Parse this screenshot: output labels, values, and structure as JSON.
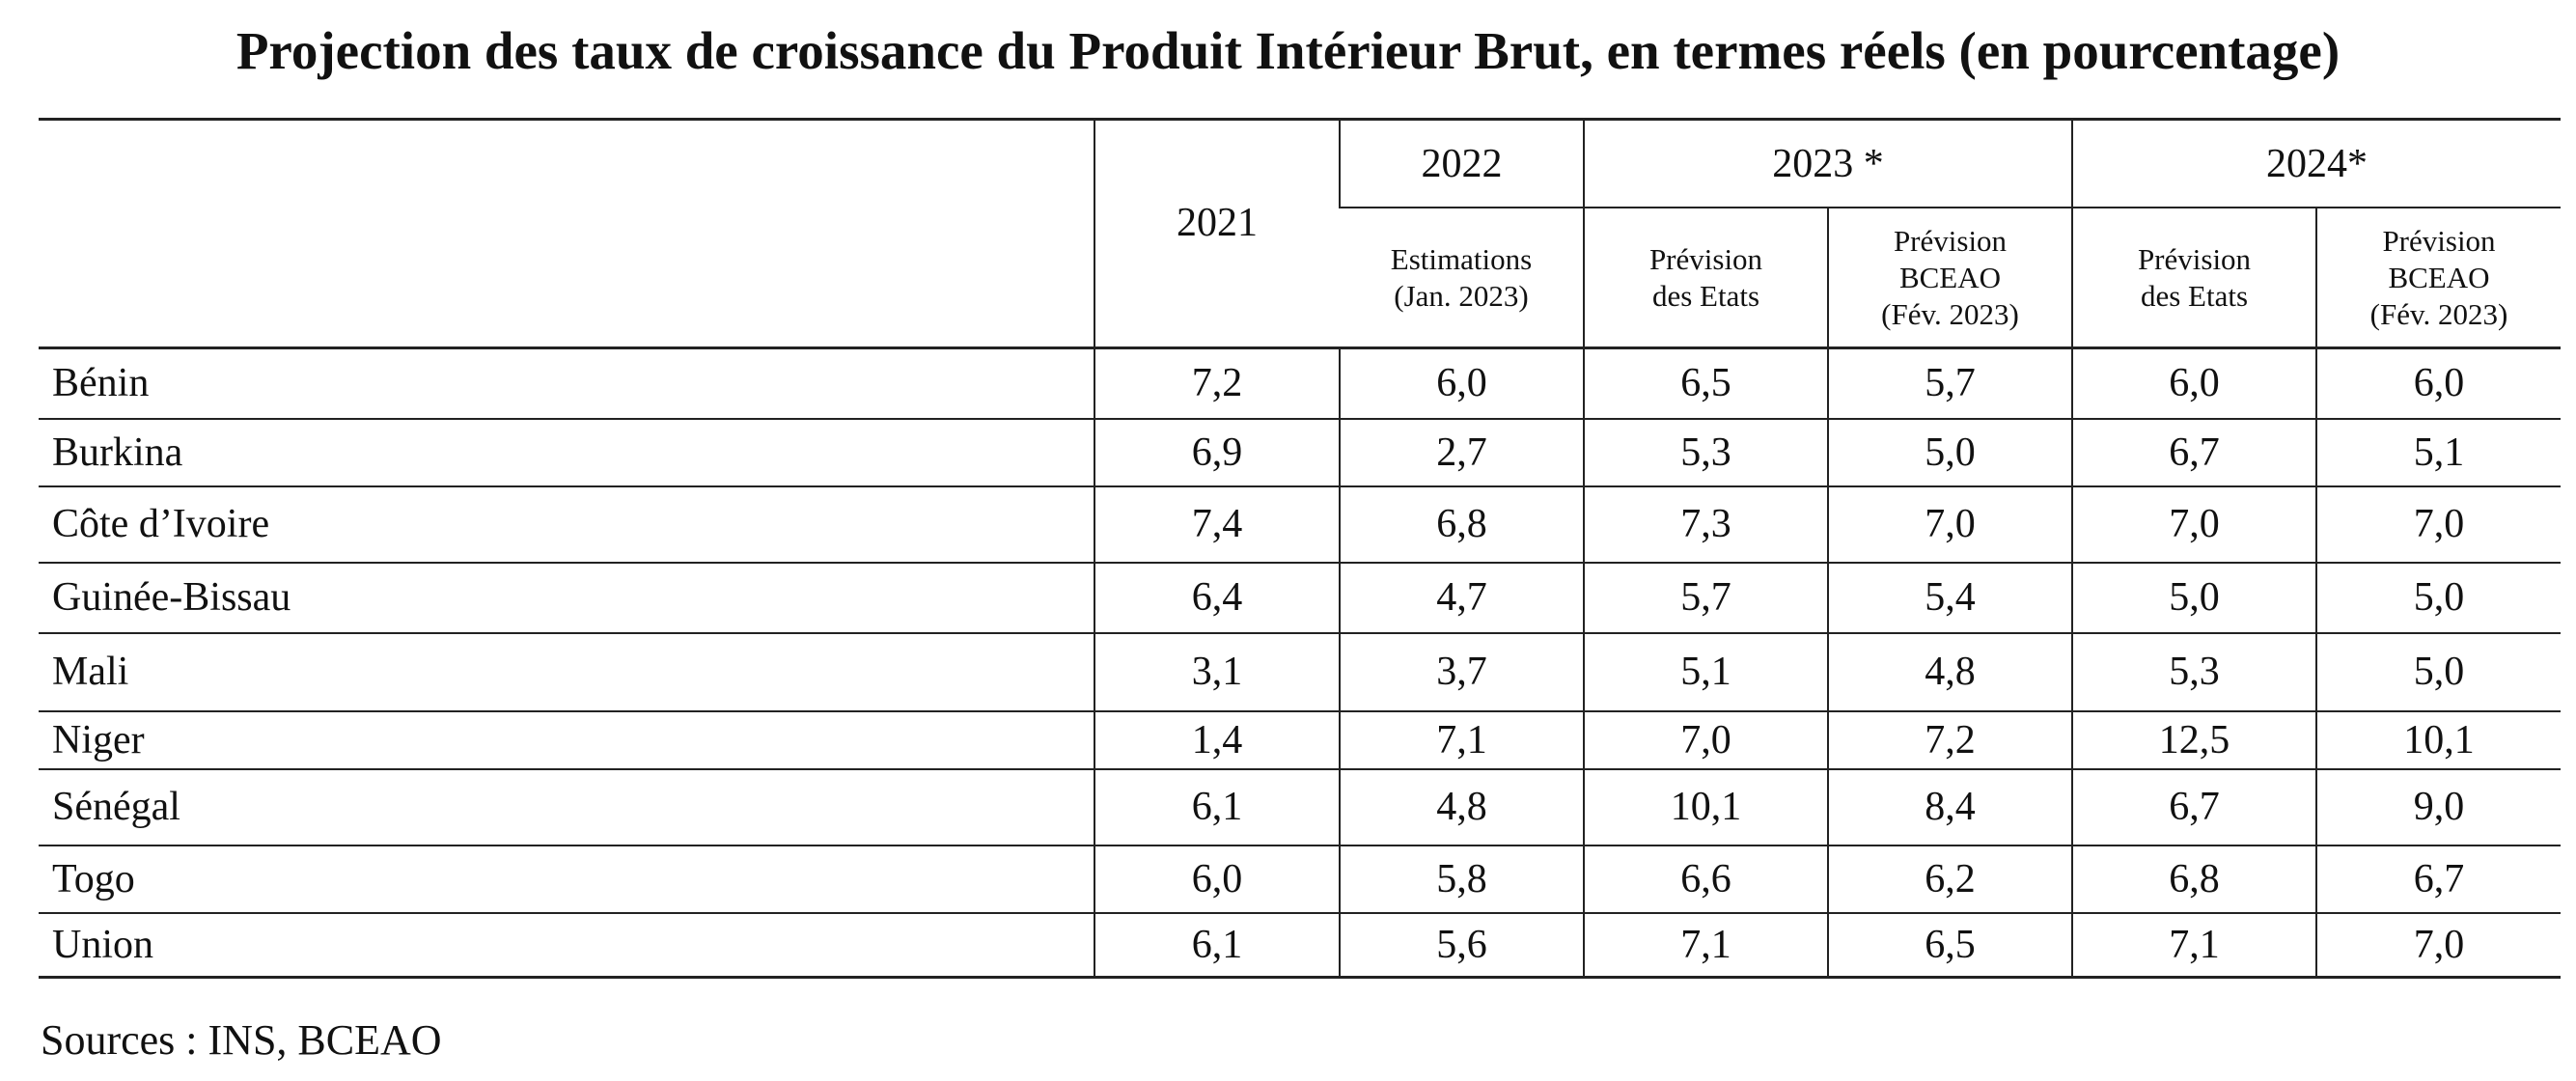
{
  "title": "Projection des taux de croissance du Produit Intérieur Brut, en termes réels (en pourcentage)",
  "header": {
    "col_2021": "2021",
    "col_2022": "2022",
    "col_2023": "2023 *",
    "col_2024": "2024*",
    "sub_2022": "Estimations\n(Jan. 2023)",
    "sub_2023_etats": "Prévision\ndes Etats",
    "sub_2023_bceao": "Prévision\nBCEAO\n(Fév. 2023)",
    "sub_2024_etats": "Prévision\ndes Etats",
    "sub_2024_bceao": "Prévision\nBCEAO\n(Fév. 2023)"
  },
  "sources": "Sources : INS, BCEAO",
  "chart_data": {
    "type": "table",
    "title": "Projection des taux de croissance du Produit Intérieur Brut, en termes réels (en pourcentage)",
    "columns": [
      "2021",
      "2022 Estimations (Jan. 2023)",
      "2023 * Prévision des Etats",
      "2023 * Prévision BCEAO (Fév. 2023)",
      "2024* Prévision des Etats",
      "2024* Prévision BCEAO (Fév. 2023)"
    ],
    "rows": [
      {
        "country": "Bénin",
        "values": [
          "7,2",
          "6,0",
          "6,5",
          "5,7",
          "6,0",
          "6,0"
        ]
      },
      {
        "country": "Burkina",
        "values": [
          "6,9",
          "2,7",
          "5,3",
          "5,0",
          "6,7",
          "5,1"
        ]
      },
      {
        "country": "Côte d’Ivoire",
        "values": [
          "7,4",
          "6,8",
          "7,3",
          "7,0",
          "7,0",
          "7,0"
        ]
      },
      {
        "country": "Guinée-Bissau",
        "values": [
          "6,4",
          "4,7",
          "5,7",
          "5,4",
          "5,0",
          "5,0"
        ]
      },
      {
        "country": "Mali",
        "values": [
          "3,1",
          "3,7",
          "5,1",
          "4,8",
          "5,3",
          "5,0"
        ]
      },
      {
        "country": "Niger",
        "values": [
          "1,4",
          "7,1",
          "7,0",
          "7,2",
          "12,5",
          "10,1"
        ]
      },
      {
        "country": "Sénégal",
        "values": [
          "6,1",
          "4,8",
          "10,1",
          "8,4",
          "6,7",
          "9,0"
        ]
      },
      {
        "country": "Togo",
        "values": [
          "6,0",
          "5,8",
          "6,6",
          "6,2",
          "6,8",
          "6,7"
        ]
      },
      {
        "country": "Union",
        "values": [
          "6,1",
          "5,6",
          "7,1",
          "6,5",
          "7,1",
          "7,0"
        ]
      }
    ]
  }
}
